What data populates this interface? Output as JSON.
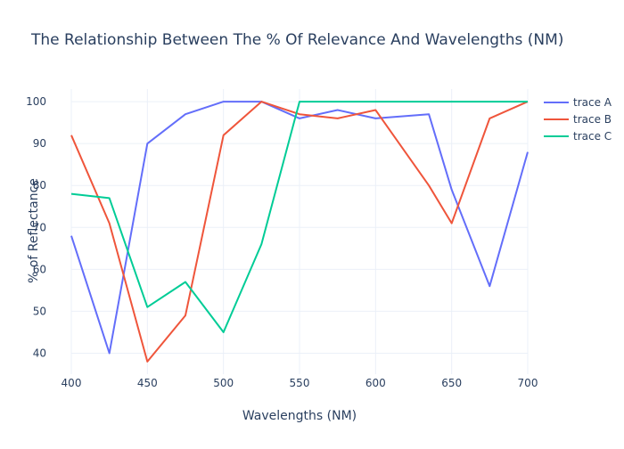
{
  "chart_data": {
    "type": "line",
    "title": "The Relationship Between The % Of Relevance And Wavelengths (NM)",
    "xlabel": "Wavelengths (NM)",
    "ylabel": "% of Reflectance",
    "xlim": [
      400,
      700
    ],
    "ylim": [
      35,
      103
    ],
    "xticks": [
      "400",
      "450",
      "500",
      "550",
      "600",
      "650",
      "700"
    ],
    "yticks": [
      "40",
      "50",
      "60",
      "70",
      "80",
      "90",
      "100"
    ],
    "grid": true,
    "legend_position": "top-right",
    "series": [
      {
        "name": "trace A",
        "color": "#636efa",
        "x": [
          400,
          425,
          450,
          475,
          500,
          525,
          550,
          575,
          600,
          635,
          650,
          675,
          700
        ],
        "y": [
          68,
          40,
          90,
          97,
          100,
          100,
          96,
          98,
          96,
          97,
          79,
          56,
          88
        ]
      },
      {
        "name": "trace B",
        "color": "#ef553b",
        "x": [
          400,
          425,
          450,
          475,
          500,
          525,
          550,
          575,
          600,
          635,
          650,
          675,
          700
        ],
        "y": [
          92,
          71,
          38,
          49,
          92,
          100,
          97,
          96,
          98,
          80,
          71,
          96,
          100
        ]
      },
      {
        "name": "trace C",
        "color": "#00cc96",
        "x": [
          400,
          425,
          450,
          475,
          500,
          525,
          550,
          575,
          600,
          625,
          650,
          675,
          700
        ],
        "y": [
          78,
          77,
          51,
          57,
          45,
          66,
          100,
          100,
          100,
          100,
          100,
          100,
          100
        ]
      }
    ]
  }
}
